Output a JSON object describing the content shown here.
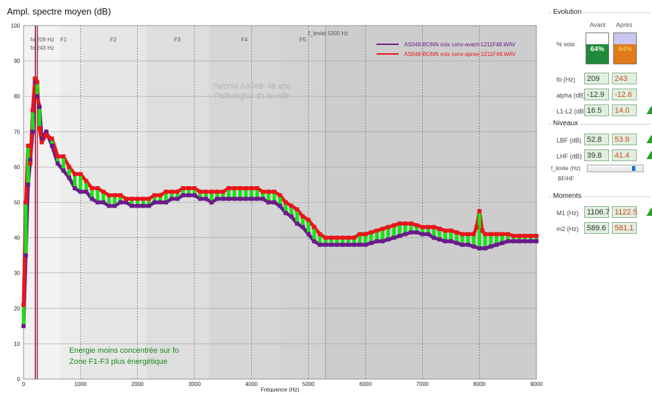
{
  "chart_data": {
    "type": "line",
    "title": "Ampl. spectre moyen (dB)",
    "xlabel": "Fréquence (Hz)",
    "ylabel": "",
    "xlim": [
      0,
      9000
    ],
    "ylim": [
      0,
      100
    ],
    "xticks": [
      "0",
      "1000",
      "2000",
      "3000",
      "4000",
      "5000",
      "6000",
      "7000",
      "8000",
      "9000"
    ],
    "yticks": [
      "0",
      "10",
      "20",
      "30",
      "40",
      "50",
      "60",
      "70",
      "80",
      "90",
      "100"
    ],
    "grid": true,
    "legend_position": "top-right",
    "zones": [
      {
        "label": "F1",
        "from": 650,
        "to": 1000
      },
      {
        "label": "F2",
        "from": 1000,
        "to": 2150
      },
      {
        "label": "F3",
        "from": 2150,
        "to": 3250
      },
      {
        "label": "F4",
        "from": 3250,
        "to": 4500
      },
      {
        "label": "F5",
        "from": 4500,
        "to": 5300
      }
    ],
    "markers": [
      {
        "label": "fo 209 Hz",
        "x": 209,
        "color": "#7a1f5a"
      },
      {
        "label": "fo 243 Hz",
        "x": 243,
        "color": "#c0392b"
      },
      {
        "label": "f_limite 5300 Hz",
        "x": 5300,
        "color": "#9a9a9a"
      }
    ],
    "series": [
      {
        "name": "AS048-BONN voix conv-avant-1211F48.WAV",
        "color": "#6a1b8a",
        "x": [
          0,
          40,
          80,
          120,
          160,
          200,
          240,
          280,
          320,
          400,
          500,
          600,
          700,
          800,
          900,
          1000,
          1100,
          1200,
          1300,
          1400,
          1500,
          1600,
          1700,
          1800,
          1900,
          2000,
          2100,
          2200,
          2300,
          2400,
          2500,
          2600,
          2700,
          2800,
          2900,
          3000,
          3100,
          3200,
          3300,
          3400,
          3500,
          3600,
          3700,
          3800,
          3900,
          4000,
          4100,
          4200,
          4300,
          4400,
          4500,
          4600,
          4700,
          4800,
          4900,
          5000,
          5100,
          5200,
          5300,
          5400,
          5500,
          5600,
          5700,
          5800,
          5900,
          6000,
          6100,
          6200,
          6300,
          6400,
          6500,
          6600,
          6700,
          6800,
          6900,
          7000,
          7100,
          7200,
          7300,
          7400,
          7500,
          7600,
          7700,
          7800,
          7900,
          8000,
          8100,
          8200,
          8300,
          8400,
          8500,
          8600,
          8700,
          8800,
          8900,
          9000
        ],
        "y": [
          15,
          35,
          55,
          62,
          70,
          84,
          80,
          77,
          68,
          70,
          66,
          61,
          59,
          57,
          54,
          53,
          53,
          51,
          50,
          50,
          49,
          49,
          50,
          50,
          49,
          49,
          49,
          49,
          50,
          50,
          50,
          51,
          51,
          52,
          52,
          52,
          51,
          51,
          50,
          51,
          51,
          51,
          51,
          51,
          51,
          51,
          51,
          51,
          50,
          50,
          49,
          47,
          46,
          44,
          43,
          41,
          39,
          38,
          38,
          38,
          38,
          38,
          38,
          38,
          38,
          38,
          38.5,
          39,
          39,
          39.5,
          40,
          40.5,
          41,
          41.5,
          41.5,
          41,
          41,
          40,
          39.5,
          39,
          39,
          38.5,
          38,
          38,
          37.5,
          37,
          37,
          37.5,
          38,
          38.5,
          39,
          39,
          39,
          39,
          39,
          39
        ]
      },
      {
        "name": "AS048-BONN voix conv-apres-1211F48.WAV",
        "color": "#e8161b",
        "x": [
          0,
          40,
          80,
          120,
          160,
          200,
          240,
          280,
          320,
          400,
          500,
          600,
          700,
          800,
          900,
          1000,
          1100,
          1200,
          1300,
          1400,
          1500,
          1600,
          1700,
          1800,
          1900,
          2000,
          2100,
          2200,
          2300,
          2400,
          2500,
          2600,
          2700,
          2800,
          2900,
          3000,
          3100,
          3200,
          3300,
          3400,
          3500,
          3600,
          3700,
          3800,
          3900,
          4000,
          4100,
          4200,
          4300,
          4400,
          4500,
          4600,
          4700,
          4800,
          4900,
          5000,
          5100,
          5200,
          5300,
          5400,
          5500,
          5600,
          5700,
          5800,
          5900,
          6000,
          6100,
          6200,
          6300,
          6400,
          6500,
          6600,
          6700,
          6800,
          6900,
          7000,
          7100,
          7200,
          7300,
          7400,
          7500,
          7600,
          7700,
          7800,
          7900,
          7950,
          8000,
          8050,
          8100,
          8200,
          8300,
          8400,
          8500,
          8600,
          8700,
          8800,
          8900,
          9000
        ],
        "y": [
          21,
          50,
          66,
          61,
          76,
          85,
          84,
          71,
          67,
          69,
          68,
          63,
          63,
          60,
          58,
          58,
          56,
          54,
          54,
          53,
          52,
          52,
          52,
          51,
          51,
          51,
          51,
          51,
          52,
          52,
          53,
          53,
          53,
          54,
          54,
          54,
          53,
          53,
          53,
          53,
          53,
          54,
          54,
          54,
          54,
          54,
          54,
          53,
          53,
          53,
          52,
          50,
          49,
          48,
          46,
          45,
          43,
          41,
          40,
          40,
          40,
          40,
          40,
          40,
          41,
          41,
          41.5,
          42,
          42.5,
          43,
          43.5,
          44,
          44,
          44,
          43.5,
          43,
          43,
          43,
          42.5,
          42,
          42,
          41.5,
          41,
          41,
          41,
          43,
          47.5,
          42,
          41,
          41,
          41,
          41,
          41,
          40.5,
          40.5,
          40.5,
          40.5,
          40.5
        ]
      }
    ],
    "annotations": [
      "Femme AS048- 48 ans",
      "Pathologies de la voix",
      "Energie moins concentrée sur fo",
      "Zone F1-F3 plus énergétique"
    ]
  },
  "panel": {
    "evolution": {
      "title": "Evolution",
      "col_before": "Avant",
      "col_after": "Après",
      "voice_label": "% voix",
      "voice_before": "64%",
      "voice_after": "64%",
      "voice_before_fraction": 0.64,
      "voice_after_fraction": 0.64,
      "voice_before_color": "#1f8a3a",
      "voice_after_color": "#e07a1a",
      "rows": [
        {
          "label": "fo (Hz)",
          "before": "209",
          "after": "243"
        },
        {
          "label": "alpha (dB)",
          "before": "-12.9",
          "after": "-12.6"
        },
        {
          "label": "L1-L2 (dB)",
          "before": "16.5",
          "after": "14.0"
        }
      ]
    },
    "niveaux": {
      "title": "Niveaux",
      "rows": [
        {
          "label": "LBF (dB)",
          "before": "52.8",
          "after": "53.9"
        },
        {
          "label": "LHF (dB)",
          "before": "39.8",
          "after": "41.4"
        }
      ],
      "slider_label": "f_limite (Hz)",
      "slider_sublabel": "BF/HF",
      "slider_fraction": 0.87
    },
    "moments": {
      "title": "Moments",
      "rows": [
        {
          "label": "M1 (Hz)",
          "before": "1106.7",
          "after": "1122.5"
        },
        {
          "label": "m2 (Hz)",
          "before": "589.6",
          "after": "581.1"
        }
      ]
    },
    "accent_green": "#2aa02a",
    "box_bg": "#dff0df"
  }
}
